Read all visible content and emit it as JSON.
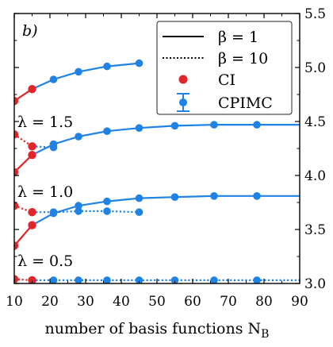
{
  "chart_data": {
    "type": "line",
    "panel_label": "b)",
    "xlabel": "number of basis functions N",
    "xlabel_sub": "B",
    "ylabel": "",
    "xlim": [
      10,
      90
    ],
    "ylim": [
      3.0,
      5.5
    ],
    "xticks": [
      "10",
      "20",
      "30",
      "40",
      "50",
      "60",
      "70",
      "80",
      "90"
    ],
    "yticks": [
      "3.0",
      "3.5",
      "4.0",
      "4.5",
      "5.0",
      "5.5"
    ],
    "y_axis_side": "right",
    "lambda_labels": [
      "λ = 1.5",
      "λ = 1.0",
      "λ = 0.5"
    ],
    "legend": {
      "placement": "top-right",
      "entries": [
        "β = 1",
        "β = 10",
        "CI",
        "CPIMC"
      ]
    },
    "colors": {
      "CI": "#e0262b",
      "CPIMC": "#1e82e6"
    },
    "series": [
      {
        "method": "CPIMC",
        "beta": 1,
        "lambda": 1.5,
        "x": [
          15,
          21,
          28,
          36,
          45
        ],
        "y": [
          4.8,
          4.89,
          4.96,
          5.01,
          5.04
        ]
      },
      {
        "method": "CI",
        "beta": 1,
        "lambda": 1.5,
        "x": [
          10,
          15
        ],
        "y": [
          4.69,
          4.8
        ]
      },
      {
        "method": "CPIMC",
        "beta": 1,
        "lambda": 1.0,
        "x": [
          15,
          21,
          28,
          36,
          45,
          55,
          66,
          78,
          91
        ],
        "y": [
          4.19,
          4.29,
          4.36,
          4.41,
          4.44,
          4.46,
          4.47,
          4.47,
          4.47
        ]
      },
      {
        "method": "CI",
        "beta": 1,
        "lambda": 1.0,
        "x": [
          10,
          15
        ],
        "y": [
          4.03,
          4.19
        ]
      },
      {
        "method": "CPIMC",
        "beta": 10,
        "lambda": 1.0,
        "x": [
          15,
          21
        ],
        "y": [
          4.27,
          4.26
        ]
      },
      {
        "method": "CI",
        "beta": 10,
        "lambda": 1.0,
        "x": [
          10,
          15
        ],
        "y": [
          4.38,
          4.27
        ]
      },
      {
        "method": "CPIMC",
        "beta": 1,
        "lambda": 0.5,
        "x": [
          15,
          21,
          28,
          36,
          45,
          55,
          66,
          78,
          91
        ],
        "y": [
          3.54,
          3.65,
          3.72,
          3.76,
          3.79,
          3.8,
          3.81,
          3.81,
          3.81
        ]
      },
      {
        "method": "CI",
        "beta": 1,
        "lambda": 0.5,
        "x": [
          10,
          15
        ],
        "y": [
          3.35,
          3.54
        ]
      },
      {
        "method": "CPIMC",
        "beta": 10,
        "lambda": 0.5,
        "x": [
          15,
          21,
          28,
          36,
          45
        ],
        "y": [
          3.66,
          3.66,
          3.67,
          3.67,
          3.66
        ]
      },
      {
        "method": "CI",
        "beta": 10,
        "lambda": 0.5,
        "x": [
          10,
          15
        ],
        "y": [
          3.72,
          3.66
        ]
      },
      {
        "method": "CPIMC",
        "beta": 10,
        "lambda": 0.0,
        "x": [
          15,
          21,
          28,
          36,
          45,
          55,
          66,
          78,
          91
        ],
        "y": [
          3.03,
          3.03,
          3.03,
          3.03,
          3.03,
          3.03,
          3.03,
          3.03,
          3.03
        ]
      },
      {
        "method": "CI",
        "beta": 10,
        "lambda": 0.0,
        "x": [
          10,
          15
        ],
        "y": [
          3.04,
          3.03
        ]
      }
    ]
  }
}
